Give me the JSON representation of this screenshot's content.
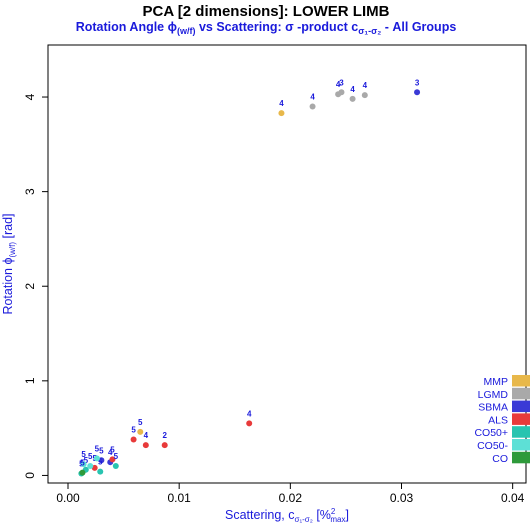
{
  "chart_data": {
    "type": "scatter",
    "title": "PCA [2 dimensions]: LOWER LIMB",
    "subtitle": {
      "part1": "Rotation Angle ",
      "phi": "ϕ",
      "phi_sub": "(w/f)",
      "part2": " vs Scattering:  σ -product c",
      "c_sub": "σ₁-σ₂",
      "part3": "  - All Groups"
    },
    "xlabel": {
      "text": "Scattering, c",
      "sub": "σ₁-σ₂",
      "unit_open": " [%",
      "unit_sup": "2",
      "unit_sub": "max",
      "unit_close": "]"
    },
    "ylabel": {
      "text": "Rotation  ",
      "phi": "ϕ",
      "sub": "(w/f)",
      "unit": "  [rad]"
    },
    "xlim": [
      -0.0018,
      0.0412
    ],
    "ylim": [
      -0.08,
      4.55
    ],
    "x_ticks": [
      0,
      0.01,
      0.02,
      0.03,
      0.04
    ],
    "x_tick_labels": [
      "0.00",
      "0.01",
      "0.02",
      "0.03",
      "0.04"
    ],
    "y_ticks": [
      0,
      1,
      2,
      3,
      4
    ],
    "y_tick_labels": [
      "0",
      "1",
      "2",
      "3",
      "4"
    ],
    "legend_position": "bottom-right",
    "legend": [
      {
        "name": "MMP",
        "color": "#e8b84a"
      },
      {
        "name": "LGMD",
        "color": "#a9a9a9"
      },
      {
        "name": "SBMA",
        "color": "#3a3ad6"
      },
      {
        "name": "ALS",
        "color": "#e83a3a"
      },
      {
        "name": "CO50+",
        "color": "#28c4b0"
      },
      {
        "name": "CO50-",
        "color": "#5de0d6"
      },
      {
        "name": "CO",
        "color": "#2e9a3a"
      }
    ],
    "series": [
      {
        "name": "MMP",
        "color": "#e8b84a",
        "points": [
          {
            "x": 0.0192,
            "y": 3.83,
            "label": "4"
          },
          {
            "x": 0.0065,
            "y": 0.46,
            "label": "5"
          }
        ]
      },
      {
        "name": "LGMD",
        "color": "#a9a9a9",
        "points": [
          {
            "x": 0.022,
            "y": 3.9,
            "label": "4"
          },
          {
            "x": 0.0243,
            "y": 4.03,
            "label": "4"
          },
          {
            "x": 0.0246,
            "y": 4.05,
            "label": "3"
          },
          {
            "x": 0.0256,
            "y": 3.98,
            "label": "4"
          },
          {
            "x": 0.0267,
            "y": 4.02,
            "label": "4"
          }
        ]
      },
      {
        "name": "SBMA",
        "color": "#3a3ad6",
        "points": [
          {
            "x": 0.0314,
            "y": 4.05,
            "label": "3"
          },
          {
            "x": 0.003,
            "y": 0.16,
            "label": "5"
          },
          {
            "x": 0.0038,
            "y": 0.14,
            "label": "4"
          }
        ]
      },
      {
        "name": "ALS",
        "color": "#e83a3a",
        "points": [
          {
            "x": 0.0163,
            "y": 0.55,
            "label": "4"
          },
          {
            "x": 0.0087,
            "y": 0.32,
            "label": "2"
          },
          {
            "x": 0.007,
            "y": 0.32,
            "label": "4"
          },
          {
            "x": 0.0059,
            "y": 0.38,
            "label": "5"
          },
          {
            "x": 0.004,
            "y": 0.17,
            "label": "5"
          },
          {
            "x": 0.0024,
            "y": 0.08,
            "label": "5"
          }
        ]
      },
      {
        "name": "CO50+",
        "color": "#28c4b0",
        "points": [
          {
            "x": 0.0012,
            "y": 0.02,
            "label": "5"
          },
          {
            "x": 0.0016,
            "y": 0.06,
            "label": "5"
          },
          {
            "x": 0.0029,
            "y": 0.04,
            "label": "5"
          },
          {
            "x": 0.0043,
            "y": 0.1,
            "label": "5"
          }
        ]
      },
      {
        "name": "CO50-",
        "color": "#5de0d6",
        "points": [
          {
            "x": 0.0014,
            "y": 0.12,
            "label": "5"
          },
          {
            "x": 0.002,
            "y": 0.1,
            "label": "5"
          },
          {
            "x": 0.0026,
            "y": 0.18,
            "label": "5"
          }
        ]
      },
      {
        "name": "CO",
        "color": "#2e9a3a",
        "points": [
          {
            "x": 0.0013,
            "y": 0.03,
            "label": "5"
          }
        ]
      }
    ]
  }
}
